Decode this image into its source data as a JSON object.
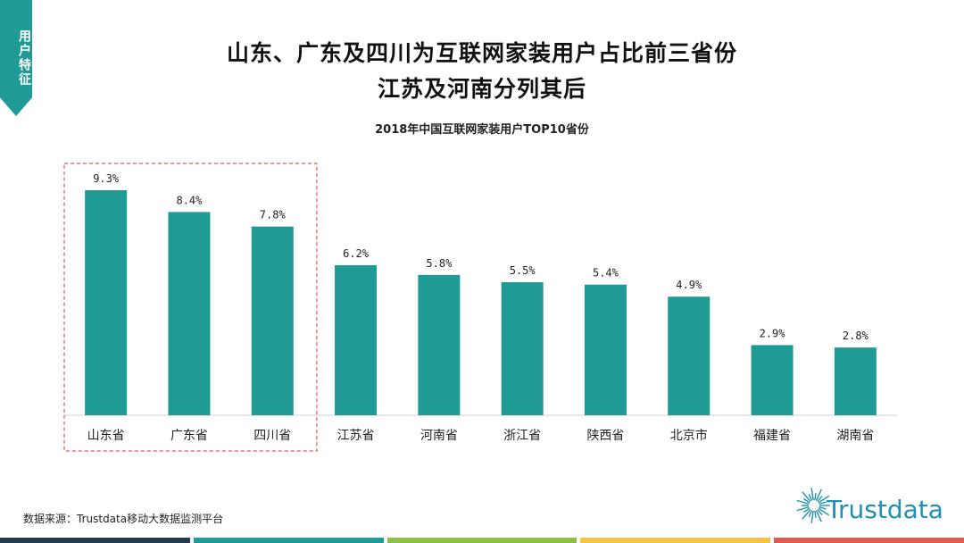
{
  "side_tag": "用户特征",
  "header": {
    "title_line1": "山东、广东及四川为互联网家装用户占比前三省份",
    "title_line2": "江苏及河南分列其后"
  },
  "chart_data": {
    "type": "bar",
    "title": "2018年中国互联网家装用户TOP10省份",
    "categories": [
      "山东省",
      "广东省",
      "四川省",
      "江苏省",
      "河南省",
      "浙江省",
      "陕西省",
      "北京市",
      "福建省",
      "湖南省"
    ],
    "values": [
      9.3,
      8.4,
      7.8,
      6.2,
      5.8,
      5.5,
      5.4,
      4.9,
      2.9,
      2.8
    ],
    "value_labels": [
      "9.3%",
      "8.4%",
      "7.8%",
      "6.2%",
      "5.8%",
      "5.5%",
      "5.4%",
      "4.9%",
      "2.9%",
      "2.8%"
    ],
    "unit": "%",
    "ylim": [
      0,
      10
    ],
    "grid": false,
    "bar_color": "#1f9a94",
    "highlight_color": "#e05a4f",
    "highlight_count": 3
  },
  "source": "数据来源：Trustdata移动大数据监测平台",
  "logo": {
    "text": "Trustdata",
    "color": "#1e8fb5"
  },
  "footer_colors": [
    "#263a4c",
    "#1f9a94",
    "#8dc044",
    "#f4c542",
    "#e05a4f"
  ]
}
